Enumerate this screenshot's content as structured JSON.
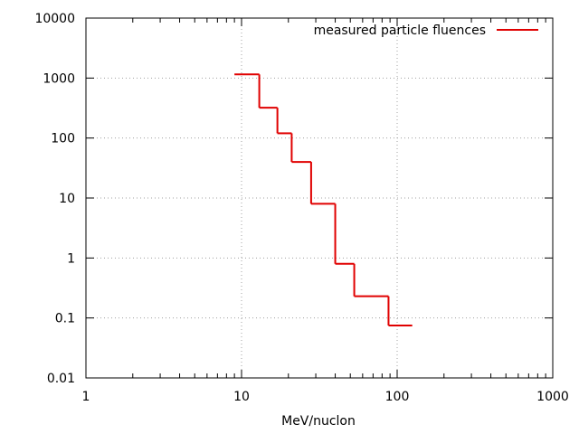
{
  "chart_data": {
    "type": "line",
    "title": "",
    "xlabel": "MeV/nuclon",
    "ylabel": "",
    "x_scale": "log",
    "y_scale": "log",
    "xlim": [
      1,
      1000
    ],
    "ylim": [
      0.01,
      10000
    ],
    "x_ticks": [
      "1",
      "10",
      "100",
      "1000"
    ],
    "y_ticks": [
      "0.01",
      "0.1",
      "1",
      "10",
      "100",
      "1000",
      "10000"
    ],
    "grid": true,
    "legend_position": "top-right",
    "series": [
      {
        "name": "measured particle fluences",
        "color": "#e00000",
        "style": "steps",
        "steps": [
          {
            "x_start": 9,
            "x_end": 13,
            "y": 1150
          },
          {
            "x_start": 13,
            "x_end": 17,
            "y": 320
          },
          {
            "x_start": 17,
            "x_end": 21,
            "y": 120
          },
          {
            "x_start": 21,
            "x_end": 28,
            "y": 40
          },
          {
            "x_start": 28,
            "x_end": 40,
            "y": 8
          },
          {
            "x_start": 40,
            "x_end": 53,
            "y": 0.8
          },
          {
            "x_start": 53,
            "x_end": 88,
            "y": 0.23
          },
          {
            "x_start": 88,
            "x_end": 125,
            "y": 0.075
          }
        ]
      }
    ]
  }
}
